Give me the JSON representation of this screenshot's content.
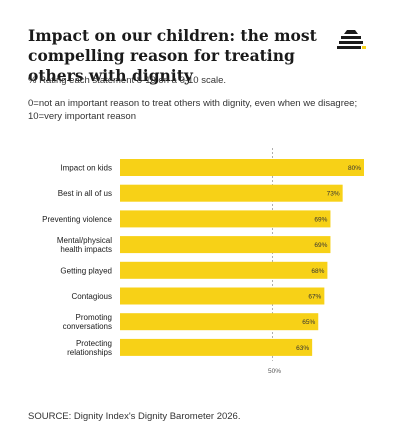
{
  "header": {
    "title": "Impact on our children: the most compelling reason for treating others with dignity",
    "subtitle": "% Rating each statement 8-10 on a 0-10 scale.",
    "scale_note": "0=not an important reason to treat others with dignity, even when we disagree; 10=very important reason"
  },
  "footer": {
    "source": "SOURCE: Dignity Index's Dignity Barometer 2026."
  },
  "colors": {
    "bar": "#f7d117",
    "reference_line": "#9a9a9a",
    "logo": "#1a1a1a",
    "logo_accent": "#f7d117"
  },
  "chart_data": {
    "type": "bar",
    "orientation": "horizontal",
    "categories": [
      [
        "Impact on kids"
      ],
      [
        "Best in all of us"
      ],
      [
        "Preventing violence"
      ],
      [
        "Mental/physical",
        "health impacts"
      ],
      [
        "Getting played"
      ],
      [
        "Contagious"
      ],
      [
        "Promoting",
        "conversations"
      ],
      [
        "Protecting",
        "relationships"
      ]
    ],
    "values": [
      80,
      73,
      69,
      69,
      68,
      67,
      65,
      63
    ],
    "value_labels": [
      "80%",
      "73%",
      "69%",
      "69%",
      "68%",
      "67%",
      "65%",
      "63%"
    ],
    "reference_line": {
      "value": 50,
      "label": "50%"
    },
    "xlim": [
      0,
      80
    ],
    "grid": false,
    "legend": "none"
  }
}
